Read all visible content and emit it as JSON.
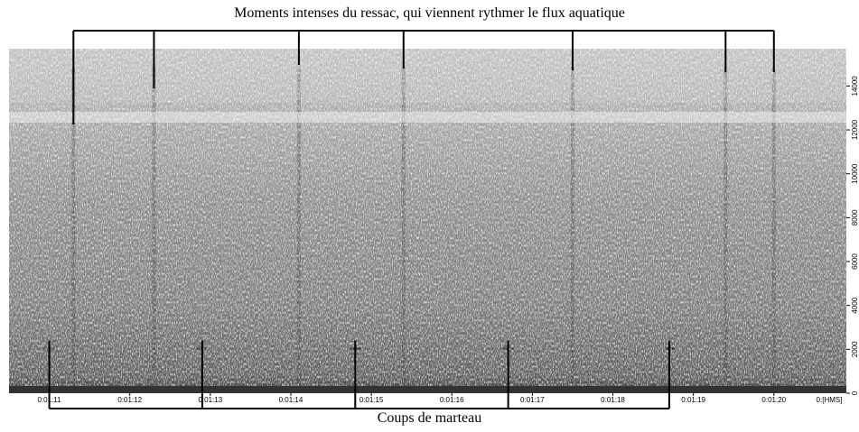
{
  "chart_data": {
    "type": "heatmap",
    "subtype": "spectrogram",
    "colors": {
      "background": "#ffffff",
      "spectrogram_dark": "#3a3a3a",
      "spectrogram_light": "#e6e6e6",
      "bracket": "#000000"
    },
    "x_ticks": [
      "0:01:11",
      "0:01:12",
      "0:01:13",
      "0:01:14",
      "0:01:15",
      "0:01:16",
      "0:01:17",
      "0:01:18",
      "0:01:19",
      "0:01:20"
    ],
    "x_unit_label": "0:[HMS]",
    "x_range_seconds": [
      70.5,
      80.9
    ],
    "y_ticks": [
      0,
      2000,
      4000,
      6000,
      8000,
      10000,
      12000,
      14000
    ],
    "y_range_hz": [
      0,
      15700
    ],
    "wave_peaks_seconds": [
      71.3,
      72.3,
      74.1,
      75.4,
      77.5,
      79.4,
      80.0
    ],
    "hammer_hits_seconds": [
      71.0,
      72.9,
      74.8,
      76.7,
      78.7
    ],
    "top_annotation": "Moments intenses du ressac, qui viennent rythmer le flux aquatique",
    "bottom_annotation": "Coups de marteau"
  }
}
